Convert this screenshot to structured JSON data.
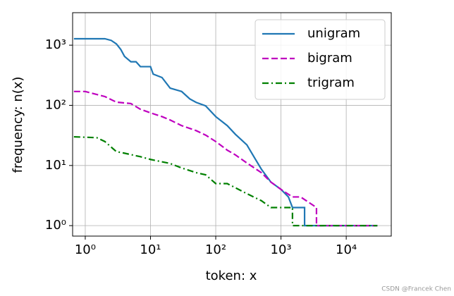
{
  "chart_data": {
    "type": "line",
    "log_x": true,
    "log_y": true,
    "grid": true,
    "legend": "upper right",
    "xlabel": "token: x",
    "ylabel": "frequency: n(x)",
    "xlim": [
      0.64,
      49000
    ],
    "ylim": [
      0.67,
      3470
    ],
    "xticks": [
      {
        "value": 1,
        "label": "10⁰"
      },
      {
        "value": 10,
        "label": "10¹"
      },
      {
        "value": 100,
        "label": "10²"
      },
      {
        "value": 1000,
        "label": "10³"
      },
      {
        "value": 10000,
        "label": "10⁴"
      }
    ],
    "yticks": [
      {
        "value": 1,
        "label": "10⁰"
      },
      {
        "value": 10,
        "label": "10¹"
      },
      {
        "value": 100,
        "label": "10²"
      },
      {
        "value": 1000,
        "label": "10³"
      }
    ],
    "series": [
      {
        "name": "unigram",
        "color": "#1f77b4",
        "style": "solid",
        "x": [
          0.67,
          2,
          2.5,
          3,
          3.5,
          4,
          5,
          6,
          7,
          10,
          11,
          15,
          20,
          30,
          40,
          50,
          70,
          100,
          150,
          200,
          300,
          400,
          500,
          700,
          1000,
          1300,
          1500,
          2300,
          2300,
          30000
        ],
        "values": [
          1280,
          1280,
          1200,
          1050,
          850,
          650,
          530,
          530,
          440,
          440,
          330,
          290,
          193,
          170,
          128,
          112,
          98,
          65,
          46,
          33,
          22,
          13,
          8.7,
          5.3,
          4,
          3,
          2,
          2,
          1,
          1
        ]
      },
      {
        "name": "bigram",
        "color": "#bf00bf",
        "style": "dashed",
        "x": [
          0.67,
          1,
          2,
          3,
          5,
          7,
          10,
          15,
          20,
          30,
          50,
          70,
          100,
          150,
          200,
          300,
          500,
          700,
          1000,
          1500,
          2000,
          3500,
          3500,
          30000
        ],
        "values": [
          170,
          170,
          140,
          113,
          107,
          86,
          75,
          65,
          57,
          46,
          38,
          32,
          25,
          18,
          15,
          11,
          7.6,
          5.3,
          4,
          3,
          3,
          2,
          1,
          1
        ]
      },
      {
        "name": "trigram",
        "color": "#008000",
        "style": "dashdot",
        "x": [
          0.67,
          1.5,
          2,
          3,
          4,
          7,
          10,
          20,
          30,
          50,
          70,
          100,
          150,
          300,
          500,
          700,
          1500,
          1500,
          30000
        ],
        "values": [
          30,
          29,
          25,
          17,
          16,
          14,
          12.6,
          10.8,
          9.1,
          7.6,
          7,
          5,
          5,
          3.4,
          2.6,
          2,
          2,
          1,
          1
        ]
      }
    ]
  },
  "watermark": "CSDN @Francek Chen"
}
